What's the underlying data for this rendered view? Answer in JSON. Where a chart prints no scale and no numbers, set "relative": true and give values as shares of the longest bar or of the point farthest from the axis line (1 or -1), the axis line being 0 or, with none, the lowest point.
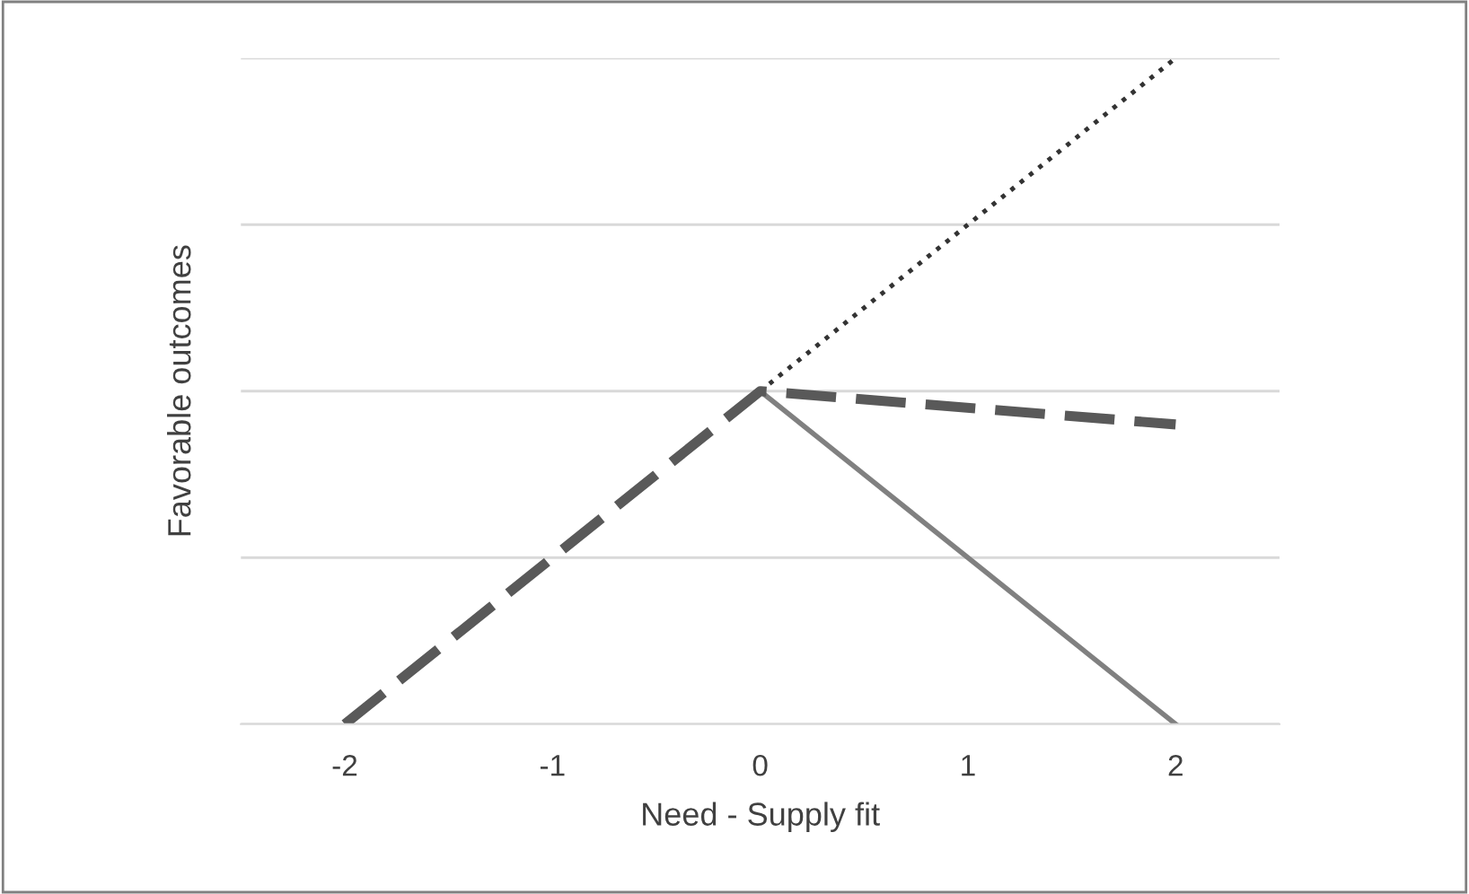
{
  "chart_data": {
    "type": "line",
    "relative": true,
    "xlabel": "Need - Supply fit",
    "ylabel": "Favorable outcomes",
    "x": [
      -2,
      0,
      2
    ],
    "xlim": [
      -2.5,
      2.5
    ],
    "xticks": [
      -2,
      -1,
      0,
      1,
      2
    ],
    "grid": "y",
    "legend": false,
    "marker": "none",
    "series": [
      {
        "color": "#333333",
        "line_style": "dotted",
        "values": [
          null,
          0.5,
          1
        ]
      },
      {
        "color": "#808080",
        "line_style": "solid",
        "values": [
          null,
          0.5,
          0
        ]
      },
      {
        "color": "#595959",
        "line_style": "dashed",
        "values": [
          0,
          0.5,
          0.45
        ]
      }
    ]
  }
}
